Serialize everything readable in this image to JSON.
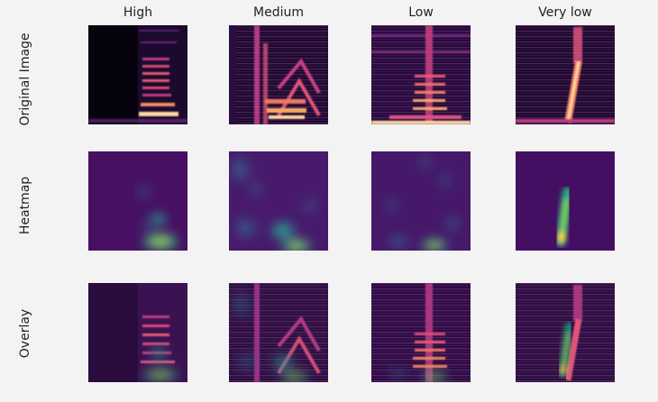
{
  "columns": [
    "High",
    "Medium",
    "Low",
    "Very low"
  ],
  "rows": [
    "Original Image",
    "Heatmap",
    "Overlay"
  ]
}
